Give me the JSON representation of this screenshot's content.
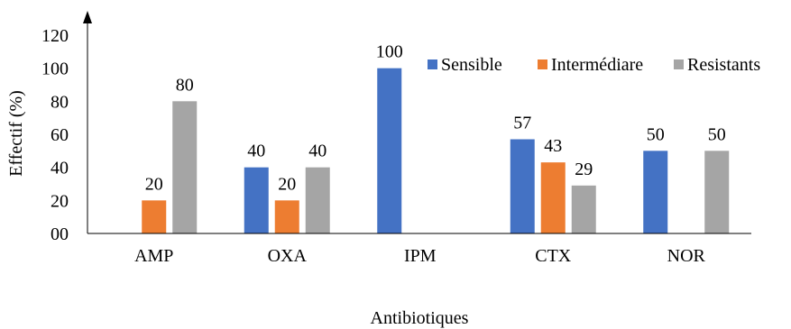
{
  "chart_data": {
    "type": "bar",
    "categories": [
      "AMP",
      "OXA",
      "IPM",
      "CTX",
      "NOR"
    ],
    "series": [
      {
        "name": "Sensible",
        "color": "#4472C4",
        "values": [
          null,
          40,
          100,
          57,
          50
        ]
      },
      {
        "name": "Intermédiare",
        "color": "#ED7D31",
        "values": [
          20,
          20,
          null,
          43,
          null
        ]
      },
      {
        "name": "Resistants",
        "color": "#A5A5A5",
        "values": [
          80,
          40,
          null,
          29,
          50
        ]
      }
    ],
    "data_labels": [
      [
        null,
        "40",
        "100",
        "57",
        "50"
      ],
      [
        "20",
        "20",
        null,
        "43",
        null
      ],
      [
        "80",
        "40",
        null,
        "29",
        "50"
      ]
    ],
    "ylabel": "Effectif (%)",
    "xlabel": "Antibiotiques",
    "ylim": [
      0,
      120
    ],
    "yticks": [
      "00",
      "20",
      "40",
      "60",
      "80",
      "100",
      "120"
    ],
    "grid": false,
    "legend_position": "top-right"
  }
}
